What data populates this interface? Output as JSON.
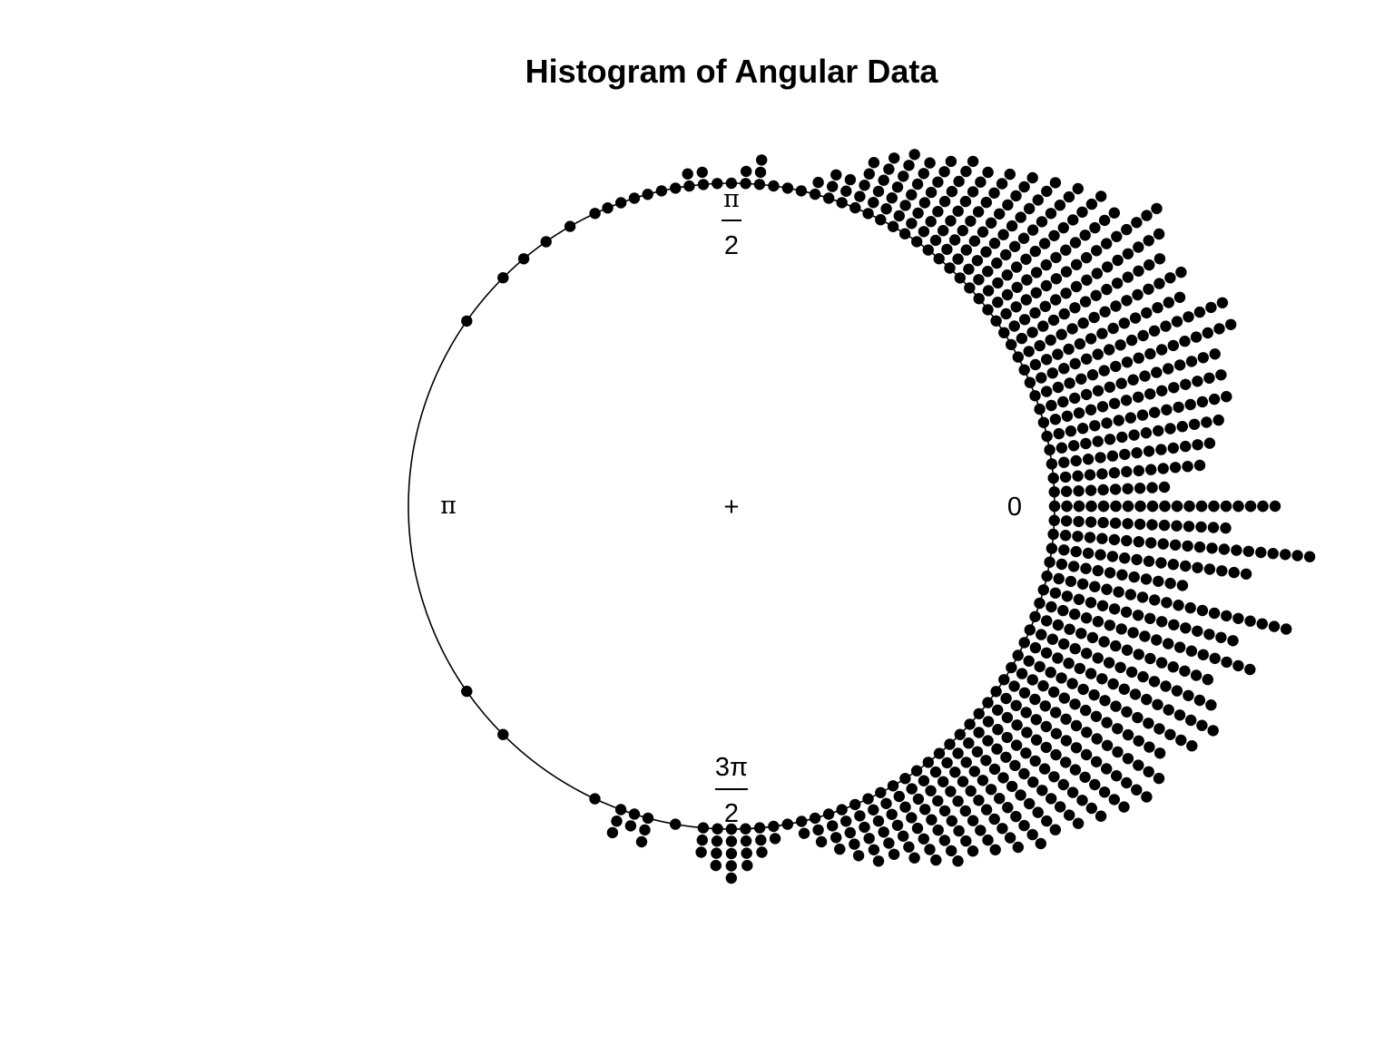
{
  "chart_data": {
    "type": "circular-stacked-dot-histogram",
    "title": "Histogram of Angular Data",
    "axis_labels": {
      "zero": "0",
      "pi_half_num": "π",
      "pi_half_den": "2",
      "pi": "π",
      "three_pi_half_num": "3π",
      "three_pi_half_den": "2",
      "center": "+"
    },
    "unit": "radians",
    "bin_count": 180,
    "grid": false,
    "legend": "none",
    "dot_color": "#000000",
    "bins": [
      [
        0.0,
        19
      ],
      [
        0.044,
        10
      ],
      [
        0.087,
        13
      ],
      [
        0.131,
        14
      ],
      [
        0.175,
        15
      ],
      [
        0.218,
        16
      ],
      [
        0.262,
        16
      ],
      [
        0.305,
        16
      ],
      [
        0.349,
        18
      ],
      [
        0.393,
        18
      ],
      [
        0.436,
        15
      ],
      [
        0.48,
        16
      ],
      [
        0.524,
        15
      ],
      [
        0.567,
        16
      ],
      [
        0.611,
        17
      ],
      [
        0.654,
        14
      ],
      [
        0.698,
        14
      ],
      [
        0.742,
        13
      ],
      [
        0.785,
        12
      ],
      [
        0.829,
        11
      ],
      [
        0.873,
        10
      ],
      [
        0.916,
        9
      ],
      [
        0.96,
        9
      ],
      [
        1.004,
        8
      ],
      [
        1.047,
        7
      ],
      [
        1.091,
        7
      ],
      [
        1.134,
        6
      ],
      [
        1.178,
        5
      ],
      [
        1.222,
        3
      ],
      [
        1.265,
        3
      ],
      [
        1.309,
        2
      ],
      [
        1.353,
        1
      ],
      [
        1.396,
        1
      ],
      [
        1.44,
        1
      ],
      [
        1.484,
        3
      ],
      [
        1.527,
        2
      ],
      [
        1.571,
        1
      ],
      [
        1.615,
        1
      ],
      [
        1.658,
        2
      ],
      [
        1.702,
        2
      ],
      [
        1.745,
        1
      ],
      [
        1.789,
        1
      ],
      [
        1.833,
        1
      ],
      [
        1.876,
        1
      ],
      [
        1.92,
        1
      ],
      [
        1.964,
        1
      ],
      [
        2.007,
        1
      ],
      [
        2.094,
        1
      ],
      [
        2.182,
        1
      ],
      [
        2.269,
        1
      ],
      [
        2.356,
        1
      ],
      [
        2.531,
        1
      ],
      [
        3.752,
        1
      ],
      [
        3.927,
        1
      ],
      [
        4.276,
        1
      ],
      [
        4.363,
        3
      ],
      [
        4.407,
        2
      ],
      [
        4.451,
        3
      ],
      [
        4.538,
        1
      ],
      [
        4.625,
        3
      ],
      [
        4.669,
        4
      ],
      [
        4.712,
        5
      ],
      [
        4.756,
        4
      ],
      [
        4.8,
        3
      ],
      [
        4.843,
        2
      ],
      [
        4.887,
        1
      ],
      [
        4.931,
        2
      ],
      [
        4.974,
        3
      ],
      [
        5.018,
        4
      ],
      [
        5.061,
        5
      ],
      [
        5.105,
        6
      ],
      [
        5.149,
        6
      ],
      [
        5.192,
        7
      ],
      [
        5.236,
        8
      ],
      [
        5.28,
        9
      ],
      [
        5.323,
        9
      ],
      [
        5.367,
        10
      ],
      [
        5.411,
        11
      ],
      [
        5.454,
        12
      ],
      [
        5.498,
        12
      ],
      [
        5.542,
        13
      ],
      [
        5.585,
        14
      ],
      [
        5.629,
        15
      ],
      [
        5.672,
        16
      ],
      [
        5.716,
        16
      ],
      [
        5.76,
        15
      ],
      [
        5.803,
        17
      ],
      [
        5.847,
        18
      ],
      [
        5.89,
        17
      ],
      [
        5.934,
        16
      ],
      [
        5.978,
        19
      ],
      [
        6.021,
        17
      ],
      [
        6.065,
        21
      ],
      [
        6.109,
        12
      ],
      [
        6.152,
        17
      ],
      [
        6.196,
        22
      ],
      [
        6.239,
        15
      ],
      [
        6.283,
        18
      ]
    ]
  }
}
